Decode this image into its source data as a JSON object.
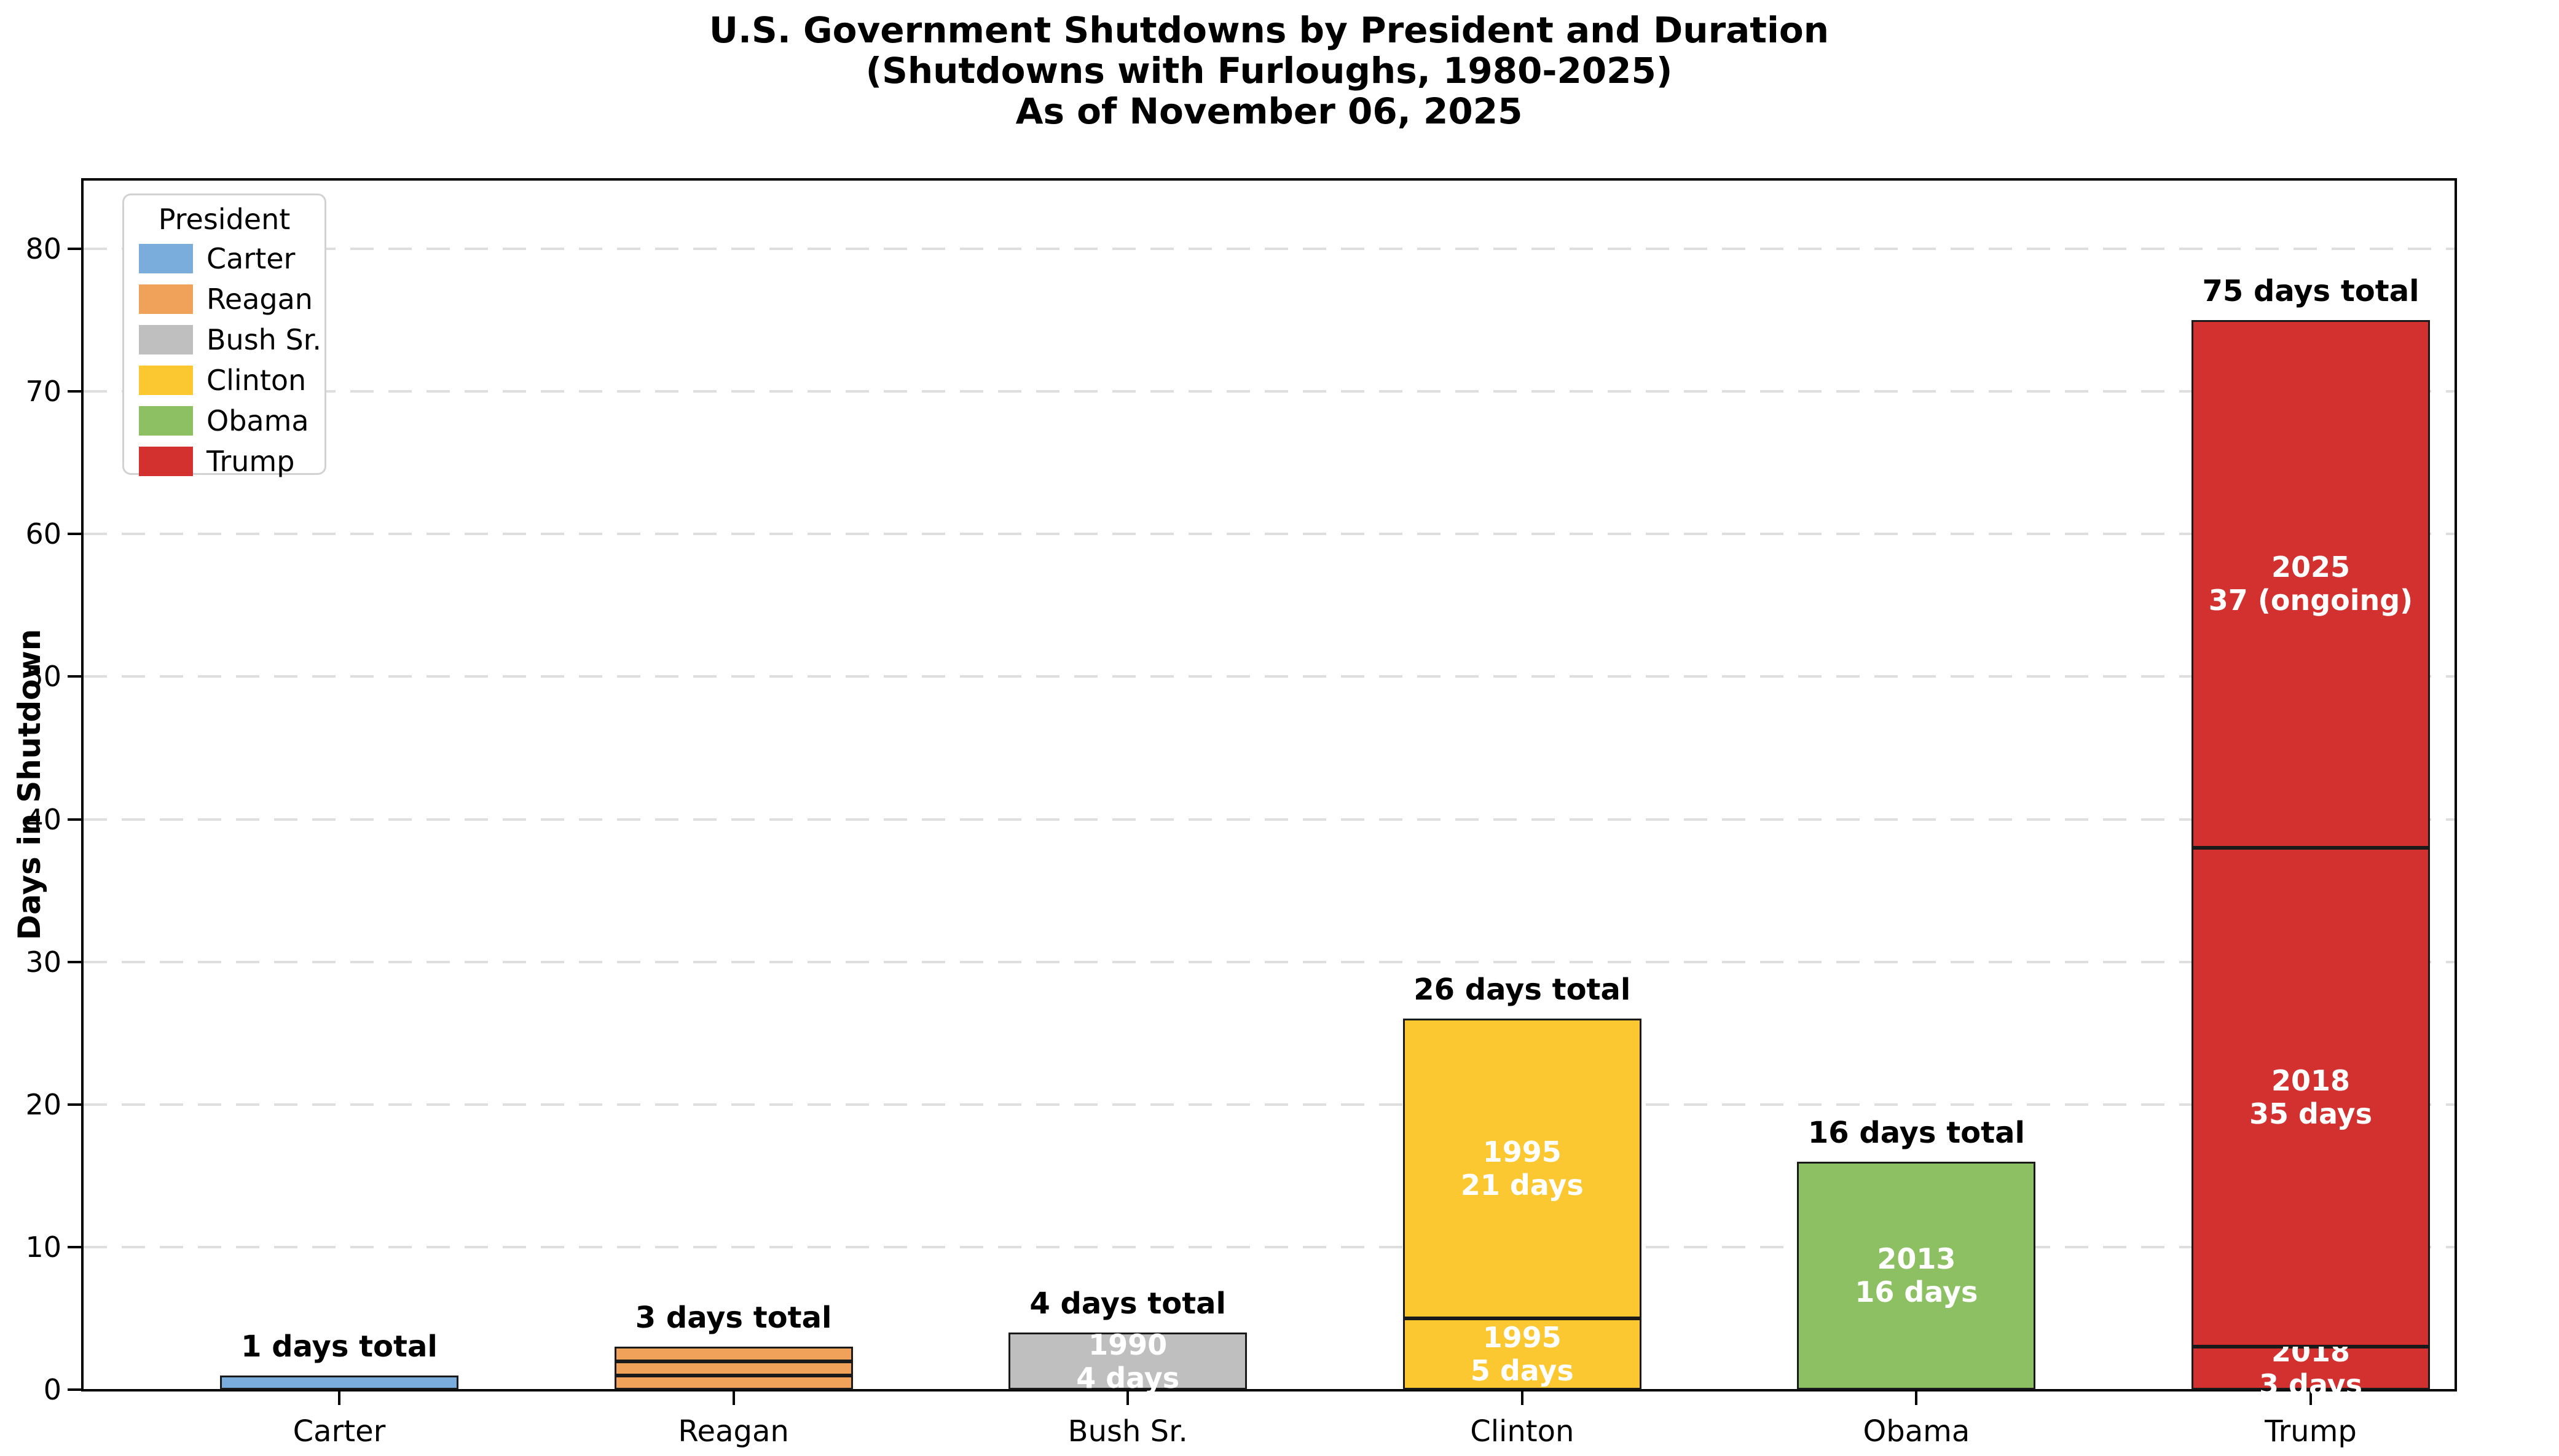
{
  "figure": {
    "title_lines": [
      "U.S. Government Shutdowns by President and Duration",
      "(Shutdowns with Furloughs, 1980-2025)",
      "As of November 06, 2025"
    ]
  },
  "axes": {
    "ylabel": "Days in Shutdown"
  },
  "legend": {
    "title": "President",
    "position": "upper left",
    "items": [
      {
        "label": "Carter",
        "color": "#7AACDC"
      },
      {
        "label": "Reagan",
        "color": "#F1A25A"
      },
      {
        "label": "Bush Sr.",
        "color": "#BFBFBF"
      },
      {
        "label": "Clinton",
        "color": "#FCC831"
      },
      {
        "label": "Obama",
        "color": "#8DC063"
      },
      {
        "label": "Trump",
        "color": "#D23130"
      }
    ]
  },
  "chart_data": {
    "type": "bar",
    "stacked": true,
    "title": "U.S. Government Shutdowns by President and Duration (Shutdowns with Furloughs, 1980-2025) As of November 06, 2025",
    "xlabel": "",
    "ylabel": "Days in Shutdown",
    "ylim": [
      0,
      85
    ],
    "yticks": [
      0,
      10,
      20,
      30,
      40,
      50,
      60,
      70,
      80
    ],
    "grid": {
      "axis": "y",
      "style": "dashed",
      "color": "#dedede"
    },
    "legend_position": "upper left",
    "edge_color": "#1a1a1a",
    "categories": [
      "Carter",
      "Reagan",
      "Bush Sr.",
      "Clinton",
      "Obama",
      "Trump"
    ],
    "totals": [
      1,
      3,
      4,
      26,
      16,
      75
    ],
    "bars": [
      {
        "president": "Carter",
        "color": "#7AACDC",
        "total_days": 1,
        "total_label": "1 days total",
        "segments": [
          {
            "days": 1,
            "label_lines": []
          }
        ]
      },
      {
        "president": "Reagan",
        "color": "#F1A25A",
        "total_days": 3,
        "total_label": "3 days total",
        "segments": [
          {
            "days": 1,
            "label_lines": []
          },
          {
            "days": 1,
            "label_lines": []
          },
          {
            "days": 1,
            "label_lines": []
          }
        ]
      },
      {
        "president": "Bush Sr.",
        "color": "#BFBFBF",
        "total_days": 4,
        "total_label": "4 days total",
        "segments": [
          {
            "days": 4,
            "label_lines": [
              "1990",
              "4 days"
            ]
          }
        ]
      },
      {
        "president": "Clinton",
        "color": "#FCC831",
        "total_days": 26,
        "total_label": "26 days total",
        "segments": [
          {
            "days": 5,
            "label_lines": [
              "1995",
              "5 days"
            ]
          },
          {
            "days": 21,
            "label_lines": [
              "1995",
              "21 days"
            ]
          }
        ]
      },
      {
        "president": "Obama",
        "color": "#8DC063",
        "total_days": 16,
        "total_label": "16 days total",
        "segments": [
          {
            "days": 16,
            "label_lines": [
              "2013",
              "16 days"
            ]
          }
        ]
      },
      {
        "president": "Trump",
        "color": "#D23130",
        "total_days": 75,
        "total_label": "75 days total",
        "segments": [
          {
            "days": 3,
            "label_lines": [
              "2018",
              "3 days"
            ]
          },
          {
            "days": 35,
            "label_lines": [
              "2018",
              "35 days"
            ]
          },
          {
            "days": 37,
            "label_lines": [
              "2025",
              "37 (ongoing)"
            ]
          }
        ]
      }
    ]
  }
}
